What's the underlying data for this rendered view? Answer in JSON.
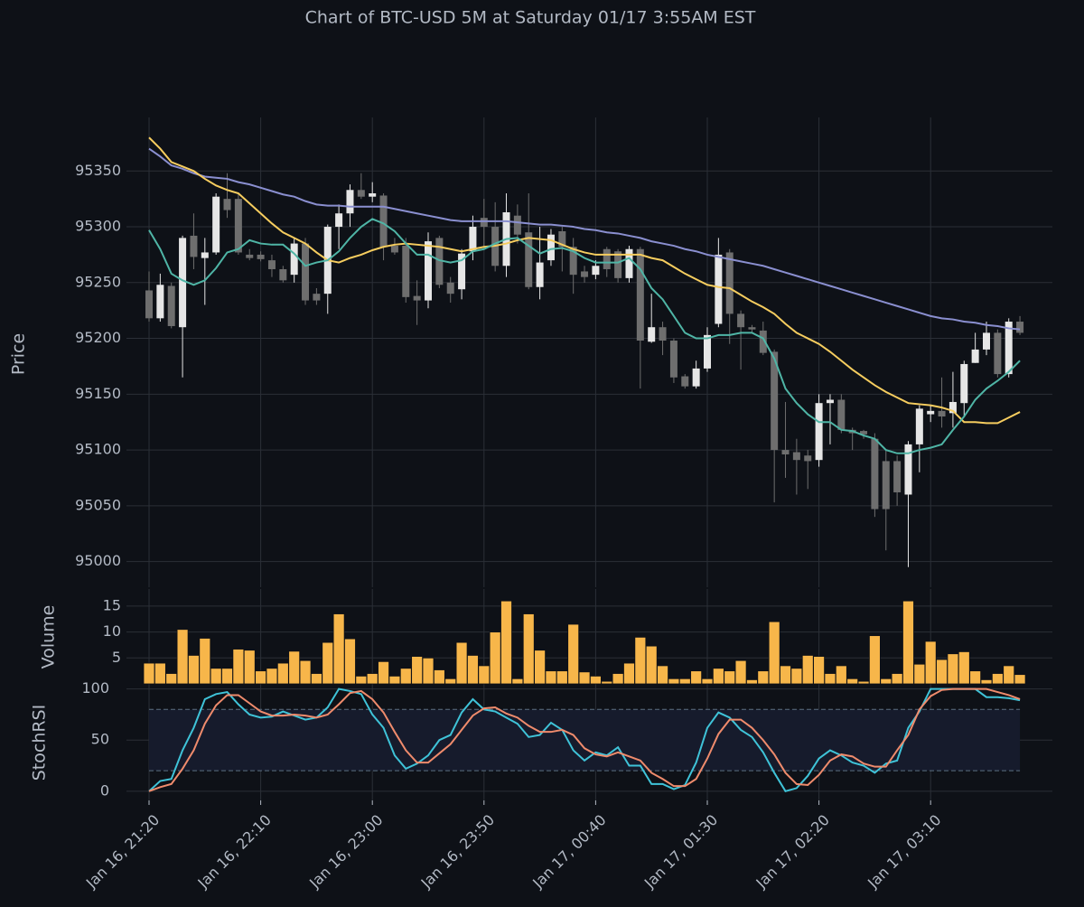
{
  "chart_data": [
    {
      "type": "candlestick",
      "title": "Chart of BTC-USD 5M at Saturday 01/17 3:55AM EST",
      "ylabel": "Price",
      "open": [
        95243,
        95218,
        95247,
        95210,
        95292,
        95272,
        95277,
        95325,
        95325,
        95275,
        95275,
        95270,
        95262,
        95257,
        95285,
        95240,
        95240,
        95300,
        95312,
        95333,
        95327,
        95328,
        95283,
        95283,
        95238,
        95234,
        95290,
        95250,
        95244,
        95278,
        95308,
        95300,
        95265,
        95310,
        95295,
        95246,
        95270,
        95296,
        95282,
        95260,
        95257,
        95280,
        95278,
        95254,
        95280,
        95197,
        95210,
        95198,
        95166,
        95157,
        95173,
        95213,
        95277,
        95222,
        95210,
        95207,
        95188,
        95100,
        95098,
        95095,
        95091,
        95142,
        95145,
        95118,
        95117,
        95110,
        95090,
        95090,
        95060,
        95105,
        95132,
        95135,
        95133,
        95142,
        95178,
        95190,
        95205,
        95168,
        95215
      ],
      "high": [
        95260,
        95258,
        95250,
        95292,
        95312,
        95290,
        95330,
        95348,
        95330,
        95280,
        95278,
        95275,
        95265,
        95290,
        95290,
        95245,
        95302,
        95320,
        95338,
        95348,
        95340,
        95330,
        95290,
        95290,
        95252,
        95295,
        95292,
        95255,
        95280,
        95310,
        95325,
        95322,
        95330,
        95320,
        95330,
        95300,
        95298,
        95300,
        95290,
        95265,
        95270,
        95282,
        95280,
        95283,
        95282,
        95240,
        95215,
        95200,
        95168,
        95180,
        95210,
        95290,
        95280,
        95225,
        95212,
        95215,
        95190,
        95143,
        95110,
        95100,
        95150,
        95150,
        95150,
        95120,
        95118,
        95115,
        95100,
        95095,
        95108,
        95140,
        95140,
        95165,
        95170,
        95180,
        95205,
        95215,
        95208,
        95218,
        95220
      ],
      "low": [
        95215,
        95215,
        95209,
        95165,
        95262,
        95230,
        95275,
        95308,
        95275,
        95270,
        95269,
        95255,
        95250,
        95250,
        95230,
        95230,
        95222,
        95280,
        95300,
        95325,
        95322,
        95270,
        95275,
        95232,
        95212,
        95227,
        95245,
        95232,
        95235,
        95270,
        95280,
        95260,
        95255,
        95285,
        95244,
        95235,
        95265,
        95260,
        95240,
        95250,
        95253,
        95255,
        95250,
        95250,
        95155,
        95196,
        95185,
        95160,
        95155,
        95155,
        95170,
        95210,
        95195,
        95172,
        95205,
        95185,
        95053,
        95075,
        95060,
        95065,
        95085,
        95105,
        95115,
        95100,
        95110,
        95040,
        95010,
        95050,
        94995,
        95080,
        95125,
        95120,
        95120,
        95130,
        95178,
        95185,
        95165,
        95165,
        95203
      ],
      "close": [
        95218,
        95248,
        95211,
        95290,
        95273,
        95277,
        95327,
        95315,
        95277,
        95272,
        95271,
        95262,
        95252,
        95285,
        95234,
        95234,
        95300,
        95312,
        95333,
        95327,
        95330,
        95282,
        95277,
        95237,
        95234,
        95287,
        95248,
        95240,
        95276,
        95300,
        95300,
        95265,
        95313,
        95293,
        95246,
        95268,
        95293,
        95282,
        95257,
        95255,
        95265,
        95262,
        95254,
        95280,
        95198,
        95210,
        95198,
        95165,
        95157,
        95173,
        95203,
        95275,
        95222,
        95210,
        95208,
        95187,
        95100,
        95096,
        95091,
        95090,
        95142,
        95145,
        95118,
        95115,
        95114,
        95047,
        95047,
        95062,
        95105,
        95137,
        95135,
        95130,
        95143,
        95177,
        95190,
        95205,
        95168,
        95215,
        95205
      ],
      "up_color": "#e6e6e6",
      "down_color": "#6e6e6e",
      "overlays": [
        {
          "color": "#8a8fd0",
          "values": [
            95370,
            95363,
            95355,
            95352,
            95348,
            95345,
            95344,
            95343,
            95340,
            95338,
            95335,
            95332,
            95329,
            95327,
            95323,
            95320,
            95319,
            95319,
            95318,
            95318,
            95318,
            95318,
            95316,
            95314,
            95312,
            95310,
            95308,
            95306,
            95305,
            95305,
            95305,
            95305,
            95305,
            95304,
            95303,
            95302,
            95302,
            95301,
            95300,
            95298,
            95297,
            95295,
            95294,
            95292,
            95290,
            95287,
            95285,
            95283,
            95280,
            95278,
            95275,
            95273,
            95271,
            95269,
            95267,
            95265,
            95262,
            95259,
            95256,
            95253,
            95250,
            95247,
            95244,
            95241,
            95238,
            95235,
            95232,
            95229,
            95226,
            95223,
            95220,
            95218,
            95217,
            95215,
            95214,
            95212,
            95211,
            95209,
            95208
          ]
        },
        {
          "color": "#f6cd5f",
          "values": [
            95380,
            95370,
            95358,
            95354,
            95350,
            95343,
            95337,
            95333,
            95330,
            95321,
            95312,
            95303,
            95295,
            95290,
            95285,
            95277,
            95270,
            95268,
            95272,
            95275,
            95279,
            95282,
            95284,
            95285,
            95284,
            95283,
            95282,
            95280,
            95278,
            95280,
            95282,
            95283,
            95285,
            95288,
            95290,
            95289,
            95288,
            95284,
            95280,
            95277,
            95275,
            95275,
            95275,
            95275,
            95275,
            95272,
            95270,
            95264,
            95258,
            95253,
            95248,
            95246,
            95245,
            95239,
            95233,
            95228,
            95222,
            95213,
            95205,
            95200,
            95195,
            95188,
            95180,
            95172,
            95165,
            95158,
            95152,
            95147,
            95142,
            95141,
            95140,
            95138,
            95135,
            95125,
            95125,
            95124,
            95124,
            95129,
            95134
          ]
        },
        {
          "color": "#4fb5a6",
          "values": [
            95297,
            95280,
            95258,
            95252,
            95248,
            95252,
            95263,
            95277,
            95280,
            95288,
            95285,
            95284,
            95284,
            95276,
            95265,
            95268,
            95270,
            95278,
            95290,
            95300,
            95307,
            95303,
            95296,
            95285,
            95275,
            95275,
            95270,
            95268,
            95270,
            95278,
            95280,
            95285,
            95289,
            95290,
            95283,
            95276,
            95280,
            95281,
            95278,
            95272,
            95268,
            95268,
            95268,
            95272,
            95262,
            95245,
            95235,
            95220,
            95205,
            95200,
            95200,
            95203,
            95203,
            95205,
            95205,
            95200,
            95182,
            95155,
            95142,
            95132,
            95125,
            95125,
            95118,
            95117,
            95113,
            95110,
            95100,
            95097,
            95097,
            95100,
            95102,
            95105,
            95118,
            95130,
            95145,
            95155,
            95162,
            95170,
            95180
          ]
        }
      ],
      "ylim": [
        94977,
        95398
      ],
      "yticks": [
        95000,
        95050,
        95100,
        95150,
        95200,
        95250,
        95300,
        95350
      ],
      "grid": true
    },
    {
      "type": "bar",
      "ylabel": "Volume",
      "color": "#f7b64a",
      "values": [
        4,
        4,
        2,
        10.5,
        5.5,
        8.8,
        3,
        3,
        6.7,
        6.5,
        2.5,
        3,
        4,
        6.3,
        4.5,
        2,
        8,
        13.5,
        8.7,
        1.5,
        2,
        4.3,
        1.5,
        3,
        5.3,
        5,
        2.7,
        1,
        8,
        5.5,
        3.5,
        10,
        16,
        1,
        13.5,
        6.5,
        2.5,
        2.5,
        11.5,
        2.3,
        1.5,
        0.5,
        2,
        4,
        9,
        7.3,
        3.5,
        1,
        1,
        2.5,
        1,
        3,
        2.5,
        4.5,
        0.8,
        2.5,
        12,
        3.5,
        3,
        5.5,
        5.3,
        2,
        3.5,
        1,
        0.5,
        9.3,
        1,
        2,
        16,
        3.8,
        8.2,
        4.7,
        5.8,
        6.2,
        2.5,
        0.8,
        2,
        3.5,
        1.8
      ],
      "ylim": [
        0,
        18.3
      ],
      "yticks": [
        5,
        10,
        15
      ],
      "grid": true
    },
    {
      "type": "line",
      "ylabel": "StochRSI",
      "categories": [
        "Jan 16, 21:20",
        null,
        null,
        null,
        null,
        null,
        null,
        null,
        null,
        null,
        "Jan 16, 22:10",
        null,
        null,
        null,
        null,
        null,
        null,
        null,
        null,
        null,
        "Jan 16, 23:00",
        null,
        null,
        null,
        null,
        null,
        null,
        null,
        null,
        null,
        "Jan 16, 23:50",
        null,
        null,
        null,
        null,
        null,
        null,
        null,
        null,
        null,
        "Jan 17, 00:40",
        null,
        null,
        null,
        null,
        null,
        null,
        null,
        null,
        null,
        "Jan 17, 01:30",
        null,
        null,
        null,
        null,
        null,
        null,
        null,
        null,
        null,
        "Jan 17, 02:20",
        null,
        null,
        null,
        null,
        null,
        null,
        null,
        null,
        null,
        "Jan 17, 03:10",
        null,
        null,
        null,
        null,
        null,
        null,
        null,
        null
      ],
      "series": [
        {
          "color": "#3fc3d8",
          "values": [
            0,
            10,
            12,
            40,
            62,
            90,
            95,
            97,
            85,
            75,
            72,
            73,
            78,
            74,
            70,
            72,
            82,
            100,
            98,
            95,
            75,
            62,
            35,
            22,
            27,
            35,
            50,
            55,
            77,
            90,
            80,
            78,
            72,
            66,
            53,
            55,
            67,
            60,
            40,
            30,
            38,
            35,
            43,
            25,
            25,
            7,
            7,
            2,
            6,
            28,
            62,
            77,
            72,
            60,
            53,
            38,
            18,
            0,
            3,
            15,
            32,
            40,
            35,
            28,
            25,
            18,
            27,
            30,
            62,
            78,
            100,
            100,
            100,
            100,
            100,
            92,
            92,
            91,
            89
          ]
        },
        {
          "color": "#ef8b6c",
          "values": [
            0,
            4,
            7,
            22,
            40,
            66,
            84,
            94,
            94,
            86,
            78,
            74,
            74,
            75,
            74,
            72,
            75,
            85,
            96,
            98,
            90,
            77,
            58,
            40,
            28,
            28,
            37,
            46,
            60,
            74,
            81,
            82,
            76,
            72,
            64,
            58,
            58,
            60,
            55,
            42,
            36,
            34,
            38,
            34,
            30,
            18,
            12,
            5,
            5,
            12,
            32,
            56,
            70,
            70,
            62,
            50,
            36,
            18,
            7,
            6,
            16,
            30,
            36,
            34,
            27,
            24,
            24,
            40,
            55,
            80,
            93,
            99,
            100,
            100,
            100,
            100,
            97,
            94,
            90
          ]
        }
      ],
      "band": [
        20,
        80
      ],
      "band_color": "#161b2c",
      "ylim": [
        -9,
        105
      ],
      "yticks": [
        0,
        50,
        100
      ],
      "grid": true
    }
  ]
}
